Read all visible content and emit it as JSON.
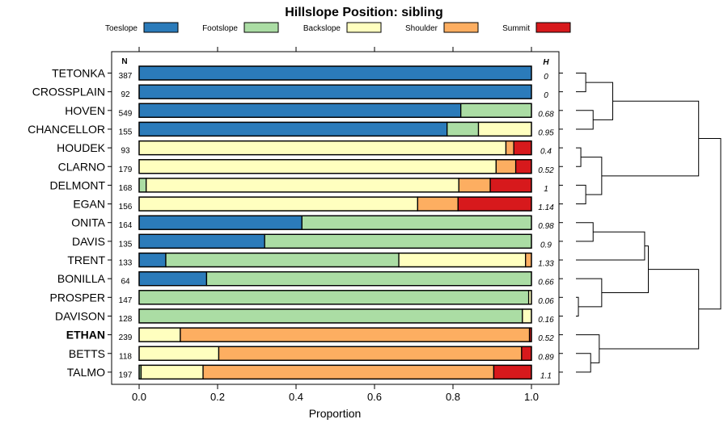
{
  "chart_data": {
    "type": "bar",
    "subtype": "stacked-horizontal-proportion",
    "title": "Hillslope Position: sibling",
    "xlabel": "Proportion",
    "ylabel": "",
    "xlim": [
      0,
      1
    ],
    "xticks": [
      "0.0",
      "0.2",
      "0.4",
      "0.6",
      "0.8",
      "1.0"
    ],
    "n_header": "N",
    "h_header": "H",
    "series": [
      {
        "name": "Toeslope",
        "color": "#2b7bba"
      },
      {
        "name": "Footslope",
        "color": "#abdda4"
      },
      {
        "name": "Backslope",
        "color": "#ffffbf"
      },
      {
        "name": "Shoulder",
        "color": "#fdae61"
      },
      {
        "name": "Summit",
        "color": "#d7191c"
      }
    ],
    "rows": [
      {
        "label": "TETONKA",
        "n": "387",
        "h": "0",
        "bold": false,
        "values": [
          1.0,
          0,
          0,
          0,
          0
        ]
      },
      {
        "label": "CROSSPLAIN",
        "n": "92",
        "h": "0",
        "bold": false,
        "values": [
          1.0,
          0,
          0,
          0,
          0
        ]
      },
      {
        "label": "HOVEN",
        "n": "549",
        "h": "0.68",
        "bold": false,
        "values": [
          0.82,
          0.18,
          0,
          0,
          0
        ]
      },
      {
        "label": "CHANCELLOR",
        "n": "155",
        "h": "0.95",
        "bold": false,
        "values": [
          0.785,
          0.08,
          0.135,
          0,
          0
        ]
      },
      {
        "label": "HOUDEK",
        "n": "93",
        "h": "0.4",
        "bold": false,
        "values": [
          0,
          0,
          0.935,
          0.02,
          0.045
        ]
      },
      {
        "label": "CLARNO",
        "n": "179",
        "h": "0.52",
        "bold": false,
        "values": [
          0,
          0,
          0.91,
          0.05,
          0.04
        ]
      },
      {
        "label": "DELMONT",
        "n": "168",
        "h": "1",
        "bold": false,
        "values": [
          0,
          0.018,
          0.797,
          0.08,
          0.105
        ]
      },
      {
        "label": "EGAN",
        "n": "156",
        "h": "1.14",
        "bold": false,
        "values": [
          0,
          0,
          0.71,
          0.103,
          0.187
        ]
      },
      {
        "label": "ONITA",
        "n": "164",
        "h": "0.98",
        "bold": false,
        "values": [
          0.415,
          0.585,
          0,
          0,
          0
        ]
      },
      {
        "label": "DAVIS",
        "n": "135",
        "h": "0.9",
        "bold": false,
        "values": [
          0.32,
          0.68,
          0,
          0,
          0
        ]
      },
      {
        "label": "TRENT",
        "n": "133",
        "h": "1.33",
        "bold": false,
        "values": [
          0.068,
          0.594,
          0.323,
          0.015,
          0
        ]
      },
      {
        "label": "BONILLA",
        "n": "64",
        "h": "0.66",
        "bold": false,
        "values": [
          0.172,
          0.828,
          0,
          0,
          0
        ]
      },
      {
        "label": "PROSPER",
        "n": "147",
        "h": "0.06",
        "bold": false,
        "values": [
          0,
          0.993,
          0.007,
          0,
          0
        ]
      },
      {
        "label": "DAVISON",
        "n": "128",
        "h": "0.16",
        "bold": false,
        "values": [
          0,
          0.977,
          0.023,
          0,
          0
        ]
      },
      {
        "label": "ETHAN",
        "n": "239",
        "h": "0.52",
        "bold": true,
        "values": [
          0,
          0,
          0.105,
          0.89,
          0.005
        ]
      },
      {
        "label": "BETTS",
        "n": "118",
        "h": "0.89",
        "bold": false,
        "values": [
          0,
          0,
          0.203,
          0.772,
          0.025
        ]
      },
      {
        "label": "TALMO",
        "n": "197",
        "h": "1.1",
        "bold": false,
        "values": [
          0,
          0.005,
          0.158,
          0.741,
          0.096
        ]
      }
    ],
    "dendrogram": {
      "labels": [
        "TETONKA",
        "CROSSPLAIN",
        "HOVEN",
        "CHANCELLOR",
        "HOUDEK",
        "CLARNO",
        "DELMONT",
        "EGAN",
        "ONITA",
        "DAVIS",
        "TRENT",
        "BONILLA",
        "PROSPER",
        "DAVISON",
        "ETHAN",
        "BETTS",
        "TALMO"
      ],
      "merges": [
        [
          -1,
          -2,
          0.08
        ],
        [
          -3,
          -4,
          0.14
        ],
        [
          1,
          2,
          0.3
        ],
        [
          -5,
          -6,
          0.04
        ],
        [
          -7,
          -8,
          0.08
        ],
        [
          4,
          5,
          0.21
        ],
        [
          3,
          6,
          1.0
        ],
        [
          -9,
          -10,
          0.14
        ],
        [
          8,
          -11,
          0.56
        ],
        [
          -13,
          -14,
          0.02
        ],
        [
          -12,
          10,
          0.21
        ],
        [
          9,
          11,
          0.59
        ],
        [
          -16,
          -17,
          0.12
        ],
        [
          -15,
          13,
          0.19
        ],
        [
          12,
          14,
          1.0
        ],
        [
          7,
          15,
          1.18
        ]
      ]
    }
  }
}
